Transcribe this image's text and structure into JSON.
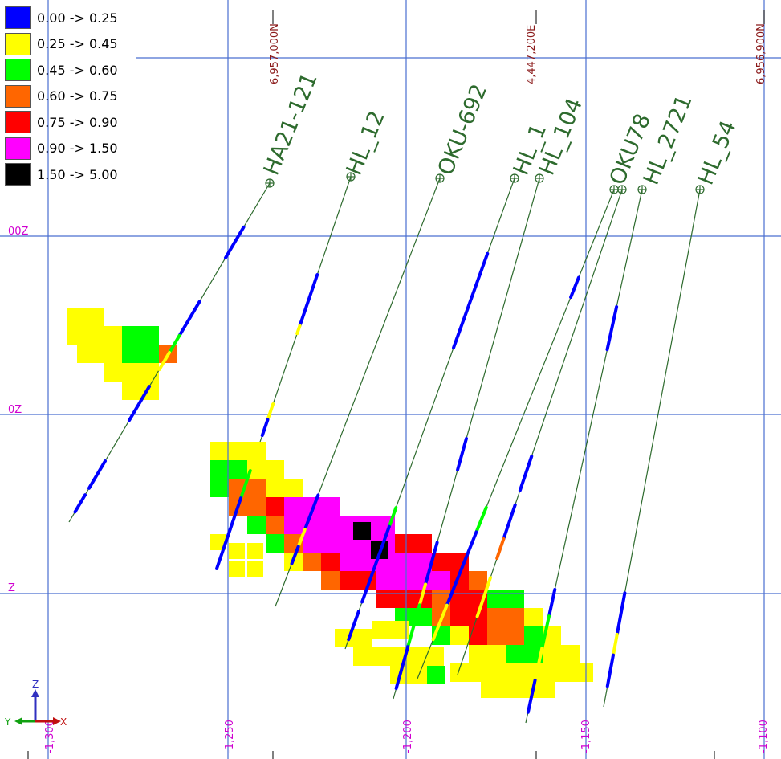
{
  "legend": [
    {
      "label": "0.00 -> 0.25",
      "color": "#0000ff"
    },
    {
      "label": "0.25 -> 0.45",
      "color": "#ffff00"
    },
    {
      "label": "0.45 -> 0.60",
      "color": "#00ff00"
    },
    {
      "label": "0.60 -> 0.75",
      "color": "#ff6600"
    },
    {
      "label": "0.75 -> 0.90",
      "color": "#ff0000"
    },
    {
      "label": "0.90 -> 1.50",
      "color": "#ff00ff"
    },
    {
      "label": "1.50 -> 5.00",
      "color": "#000000"
    }
  ],
  "grid": {
    "northing_labels": [
      "6,957,000N",
      "6,956,900N"
    ],
    "easting_labels": [
      "4,447,200E"
    ],
    "elevation_labels": [
      "00Z",
      "0Z",
      "Z"
    ],
    "x_tick_labels": [
      "-1,300",
      "-1,250",
      "-1,200",
      "-1,150",
      "-1,100"
    ],
    "line_color": "#4a6fd0",
    "label_color_magenta": "#d000d0",
    "label_color_brown": "#8b1a1a"
  },
  "drillholes": [
    {
      "name": "HA21-121"
    },
    {
      "name": "HL_12"
    },
    {
      "name": "OKU-692"
    },
    {
      "name": "HL_1"
    },
    {
      "name": "HL_104"
    },
    {
      "name": "OKU78"
    },
    {
      "name": "HL_2721"
    },
    {
      "name": "HL_54"
    }
  ],
  "trace_color": "#2e6b2e",
  "axis": {
    "z": "Z",
    "x": "X",
    "y": "Y"
  }
}
